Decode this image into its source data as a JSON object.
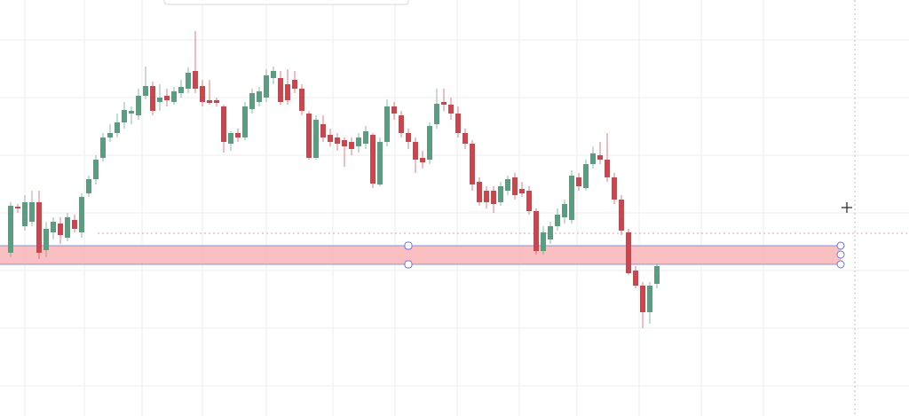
{
  "chart_data": {
    "type": "candlestick",
    "up_color": "#5d9c80",
    "down_color": "#c8474e",
    "ylim": [
      0,
      470
    ],
    "open": [
      185,
      237,
      215,
      220,
      242,
      188,
      208,
      218,
      202,
      222,
      208,
      252,
      268,
      292,
      315,
      320,
      332,
      342,
      340,
      362,
      373,
      355,
      362,
      355,
      365,
      370,
      390,
      373,
      357,
      357,
      350,
      308,
      320,
      315,
      347,
      355,
      360,
      382,
      382,
      375,
      380,
      370,
      342,
      292,
      330,
      318,
      315,
      312,
      310,
      305,
      308,
      318,
      262,
      310,
      350,
      340,
      320,
      310,
      292,
      290,
      330,
      355,
      352,
      342,
      320,
      308,
      265,
      255,
      255,
      242,
      255,
      270,
      257,
      255,
      232,
      187,
      200,
      215,
      225,
      222,
      270,
      258,
      285,
      295,
      290,
      270,
      245,
      208,
      165,
      148,
      118,
      150
    ],
    "high": [
      242,
      240,
      250,
      255,
      255,
      220,
      225,
      225,
      230,
      228,
      252,
      272,
      295,
      320,
      330,
      342,
      355,
      350,
      370,
      395,
      378,
      375,
      370,
      372,
      380,
      394,
      435,
      380,
      380,
      360,
      352,
      322,
      325,
      355,
      370,
      372,
      392,
      395,
      390,
      392,
      390,
      375,
      345,
      340,
      340,
      325,
      320,
      315,
      315,
      320,
      328,
      320,
      315,
      358,
      355,
      345,
      325,
      315,
      300,
      332,
      370,
      370,
      360,
      350,
      325,
      312,
      270,
      260,
      260,
      265,
      272,
      275,
      265,
      260,
      235,
      215,
      220,
      235,
      245,
      278,
      275,
      290,
      305,
      310,
      320,
      275,
      250,
      212,
      170,
      152,
      152,
      172
    ],
    "low": [
      180,
      230,
      210,
      215,
      178,
      180,
      200,
      195,
      198,
      208,
      202,
      248,
      262,
      288,
      310,
      315,
      325,
      330,
      335,
      358,
      340,
      345,
      350,
      352,
      360,
      365,
      365,
      350,
      352,
      350,
      298,
      300,
      310,
      312,
      342,
      350,
      355,
      375,
      352,
      352,
      365,
      340,
      290,
      290,
      310,
      305,
      300,
      282,
      295,
      298,
      302,
      258,
      260,
      305,
      335,
      315,
      302,
      275,
      280,
      285,
      325,
      345,
      335,
      315,
      302,
      255,
      238,
      235,
      230,
      238,
      250,
      245,
      248,
      228,
      183,
      183,
      195,
      210,
      218,
      218,
      255,
      255,
      280,
      285,
      265,
      240,
      205,
      160,
      145,
      100,
      105,
      145
    ],
    "close": [
      238,
      235,
      242,
      242,
      185,
      212,
      220,
      205,
      225,
      212,
      248,
      268,
      290,
      315,
      320,
      332,
      346,
      345,
      362,
      373,
      345,
      360,
      357,
      367,
      372,
      388,
      370,
      355,
      354,
      354,
      310,
      320,
      315,
      350,
      365,
      367,
      385,
      390,
      355,
      357,
      370,
      345,
      292,
      335,
      315,
      310,
      308,
      305,
      302,
      315,
      322,
      263,
      310,
      350,
      342,
      320,
      310,
      290,
      287,
      328,
      353,
      352,
      342,
      320,
      308,
      262,
      242,
      242,
      240,
      260,
      268,
      250,
      252,
      232,
      187,
      208,
      215,
      228,
      240,
      272,
      260,
      285,
      297,
      290,
      270,
      245,
      210,
      162,
      148,
      118,
      148,
      170
    ]
  }
}
